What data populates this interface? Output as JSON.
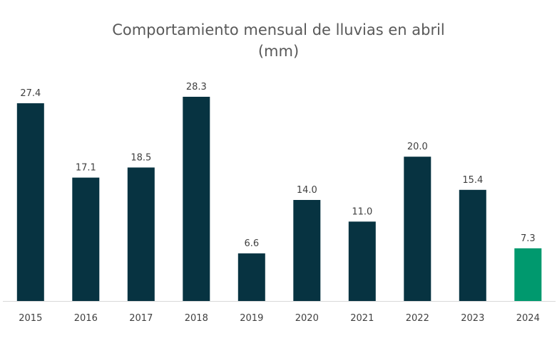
{
  "chart_data": {
    "type": "bar",
    "title": "Comportamiento mensual de lluvias en abril",
    "subtitle": "(mm)",
    "categories": [
      "2015",
      "2016",
      "2017",
      "2018",
      "2019",
      "2020",
      "2021",
      "2022",
      "2023",
      "2024"
    ],
    "values": [
      27.4,
      17.1,
      18.5,
      28.3,
      6.6,
      14.0,
      11.0,
      20.0,
      15.4,
      7.3
    ],
    "value_labels": [
      "27.4",
      "17.1",
      "18.5",
      "28.3",
      "6.6",
      "14.0",
      "11.0",
      "20.0",
      "15.4",
      "7.3"
    ],
    "colors": {
      "default": "#073341",
      "highlight": "#00996E"
    },
    "highlight_category": "2024",
    "xlabel": "",
    "ylabel": "",
    "ylim": [
      0,
      30
    ],
    "grid": false,
    "legend": "none",
    "data_labels": true
  }
}
